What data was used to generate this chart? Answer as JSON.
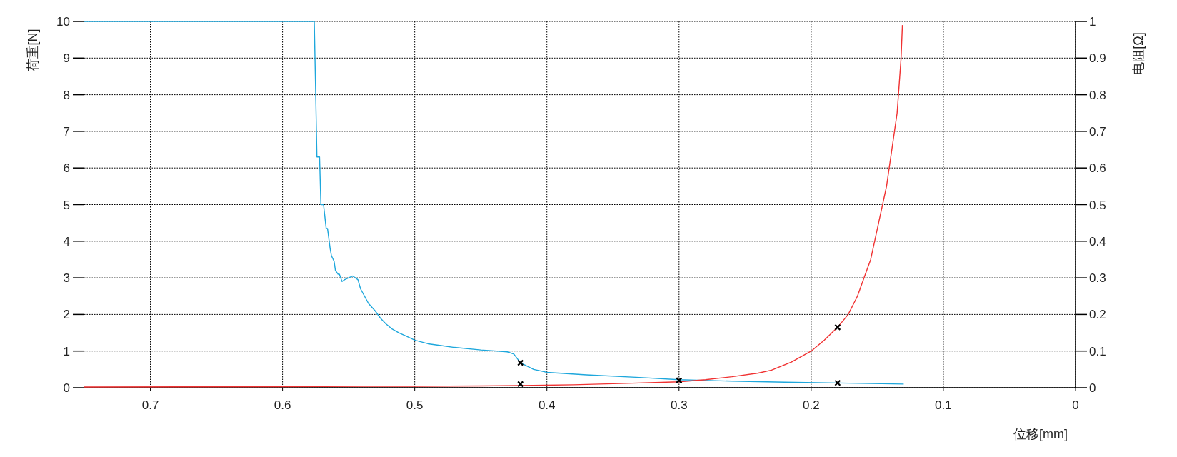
{
  "chart_data": {
    "type": "line",
    "xlabel": "位移[mm]",
    "ylabel": "荷重[N]",
    "y2label": "电阻[Ω]",
    "xlim": [
      0.75,
      0
    ],
    "xticks": [
      0.7,
      0.6,
      0.5,
      0.4,
      0.3,
      0.2,
      0.1,
      0
    ],
    "ylim": [
      0,
      10
    ],
    "yticks": [
      0,
      1,
      2,
      3,
      4,
      5,
      6,
      7,
      8,
      9,
      10
    ],
    "y2lim": [
      0,
      1
    ],
    "y2ticks": [
      0,
      0.1,
      0.2,
      0.3,
      0.4,
      0.5,
      0.6,
      0.7,
      0.8,
      0.9,
      1
    ],
    "grid": true,
    "marker": "none",
    "line_style": "solid",
    "series": [
      {
        "color": "#1ea7dc",
        "axis": "y",
        "x": [
          0.75,
          0.576,
          0.574,
          0.572,
          0.571,
          0.569,
          0.567,
          0.566,
          0.564,
          0.563,
          0.561,
          0.56,
          0.558,
          0.557,
          0.555,
          0.553,
          0.55,
          0.547,
          0.545,
          0.543,
          0.541,
          0.538,
          0.535,
          0.53,
          0.526,
          0.522,
          0.517,
          0.512,
          0.506,
          0.5,
          0.49,
          0.48,
          0.47,
          0.45,
          0.43,
          0.425,
          0.42,
          0.41,
          0.4,
          0.37,
          0.33,
          0.3,
          0.26,
          0.22,
          0.18,
          0.13
        ],
        "values": [
          10,
          10,
          6.3,
          6.3,
          5.0,
          5.0,
          4.35,
          4.35,
          3.8,
          3.6,
          3.45,
          3.2,
          3.1,
          3.1,
          2.9,
          2.95,
          3.0,
          3.05,
          3.0,
          2.95,
          2.7,
          2.5,
          2.3,
          2.1,
          1.9,
          1.75,
          1.6,
          1.5,
          1.4,
          1.3,
          1.2,
          1.15,
          1.1,
          1.03,
          0.98,
          0.92,
          0.68,
          0.5,
          0.42,
          0.35,
          0.28,
          0.22,
          0.18,
          0.15,
          0.13,
          0.1
        ]
      },
      {
        "color": "#f03232",
        "axis": "y2",
        "x": [
          0.75,
          0.6,
          0.5,
          0.45,
          0.42,
          0.38,
          0.34,
          0.3,
          0.28,
          0.26,
          0.24,
          0.23,
          0.215,
          0.2,
          0.19,
          0.18,
          0.172,
          0.165,
          0.16,
          0.155,
          0.152,
          0.149,
          0.146,
          0.143,
          0.141,
          0.139,
          0.137,
          0.135,
          0.134,
          0.133,
          0.132,
          0.131
        ],
        "values": [
          0.002,
          0.003,
          0.004,
          0.005,
          0.006,
          0.008,
          0.012,
          0.016,
          0.022,
          0.03,
          0.04,
          0.048,
          0.07,
          0.1,
          0.13,
          0.165,
          0.2,
          0.25,
          0.3,
          0.35,
          0.4,
          0.45,
          0.5,
          0.55,
          0.6,
          0.65,
          0.7,
          0.75,
          0.8,
          0.85,
          0.9,
          0.99
        ]
      },
      {
        "type": "scatter",
        "color": "#000000",
        "axis": "y",
        "marker": "cross",
        "x": [
          0.42,
          0.3,
          0.18
        ],
        "values": [
          0.68,
          0.2,
          0.13
        ]
      },
      {
        "type": "scatter",
        "color": "#000000",
        "axis": "y2",
        "marker": "cross",
        "x": [
          0.42,
          0.3,
          0.18
        ],
        "values": [
          0.01,
          0.02,
          0.165
        ]
      }
    ]
  }
}
